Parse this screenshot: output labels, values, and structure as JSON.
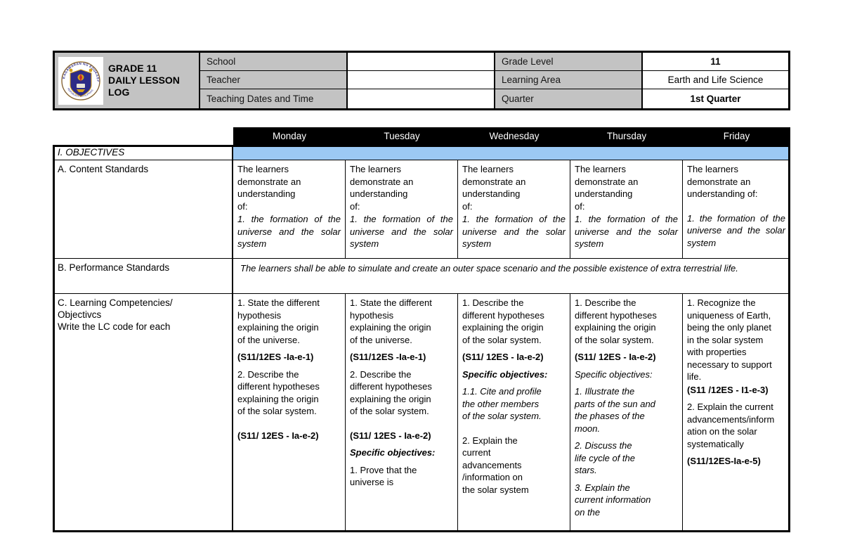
{
  "colors": {
    "header_gray": "#c3c3c3",
    "day_bar_black": "#000000",
    "objectives_band_blue": "#9cc9f4",
    "border_black": "#000000",
    "seal_navy": "#2d2b86",
    "seal_gold": "#d4a017",
    "seal_red": "#c0272d"
  },
  "header": {
    "logo_icon": "deped-seal-icon",
    "logo_title": "GRADE 11\nDAILY LESSON\nLOG",
    "fields_left": [
      {
        "label": "School",
        "value": ""
      },
      {
        "label": "Teacher",
        "value": ""
      },
      {
        "label": "Teaching Dates and Time",
        "value": ""
      }
    ],
    "fields_right": [
      {
        "label": "Grade Level",
        "value": "11"
      },
      {
        "label": "Learning Area",
        "value": "Earth and Life Science"
      },
      {
        "label": "Quarter",
        "value": "1st Quarter"
      }
    ]
  },
  "schedule": {
    "day_headers": [
      "Monday",
      "Tuesday",
      "Wednesday",
      "Thursday",
      "Friday"
    ],
    "objectives_section_label": "I. OBJECTIVES",
    "content_standards": {
      "label": "A. Content Standards",
      "cells": [
        [
          {
            "text": "The learners\ndemonstrate an\nunderstanding\nof:",
            "style": "m0"
          },
          {
            "text": "1. the formation of the universe and the solar system",
            "style": "italic justify"
          }
        ],
        [
          {
            "text": "The learners\ndemonstrate an\nunderstanding\nof:",
            "style": "m0"
          },
          {
            "text": "1. the formation of the universe and the solar system",
            "style": "italic justify"
          }
        ],
        [
          {
            "text": "The learners\ndemonstrate an\nunderstanding\nof:",
            "style": "m0"
          },
          {
            "text": "1. the formation of the universe and the solar system",
            "style": "italic justify"
          }
        ],
        [
          {
            "text": "The learners\ndemonstrate an\nunderstanding\nof:",
            "style": "m0"
          },
          {
            "text": "1. the formation of the universe and the solar system",
            "style": "italic justify"
          }
        ],
        [
          {
            "text": "The learners\ndemonstrate an\nunderstanding of:",
            "style": ""
          },
          {
            "text": "",
            "style": "gap"
          },
          {
            "text": "1. the formation of the universe and the solar system",
            "style": "italic justify"
          }
        ]
      ]
    },
    "performance_standards": {
      "label": "B. Performance Standards",
      "cell": [
        {
          "text": "The learners shall be able to simulate and create an outer space scenario and the possible existence of extra terrestrial life.",
          "style": "italic justify"
        }
      ]
    },
    "learning_competencies": {
      "label": "C. Learning Competencies/\nObjectivcs\nWrite the LC code for each",
      "cells": [
        [
          {
            "text": "1. State the different\nhypothesis\nexplaining the origin\nof the universe.",
            "style": ""
          },
          {
            "text": "(S11/12ES -Ia-e-1)",
            "style": "bold"
          },
          {
            "text": "2. Describe the\ndifferent hypotheses\nexplaining the origin\nof the solar system.",
            "style": ""
          },
          {
            "text": "",
            "style": "gap"
          },
          {
            "text": "(S11/ 12ES - Ia-e-2)",
            "style": "bold"
          }
        ],
        [
          {
            "text": "1. State the different\nhypothesis\nexplaining the origin\nof the universe.",
            "style": ""
          },
          {
            "text": "(S11/12ES -Ia-e-1)",
            "style": "bold"
          },
          {
            "text": "2. Describe the\ndifferent hypotheses\nexplaining the origin\nof the solar system.",
            "style": ""
          },
          {
            "text": "",
            "style": "gap"
          },
          {
            "text": "(S11/ 12ES - Ia-e-2)",
            "style": "bold"
          },
          {
            "text": "Specific objectives:",
            "style": "bolditalic"
          },
          {
            "text": "1. Prove that the\nuniverse is",
            "style": "m0"
          }
        ],
        [
          {
            "text": "1. Describe the\ndifferent hypotheses\nexplaining the origin\nof the solar system.",
            "style": ""
          },
          {
            "text": "(S11/ 12ES - Ia-e-2)",
            "style": "bold"
          },
          {
            "text": "Specific objectives:",
            "style": "bolditalic"
          },
          {
            "text": "1.1. Cite and profile\nthe other members\nof the solar system.",
            "style": "italic"
          },
          {
            "text": "",
            "style": "gap"
          },
          {
            "text": "2. Explain the\ncurrent\nadvancements\n/information on\nthe solar system",
            "style": ""
          }
        ],
        [
          {
            "text": "1. Describe the\ndifferent hypotheses\nexplaining the origin\nof the solar system.",
            "style": ""
          },
          {
            "text": "(S11/ 12ES - Ia-e-2)",
            "style": "bold"
          },
          {
            "text": "Specific objectives:",
            "style": "italic"
          },
          {
            "text": "1. Illustrate the\nparts of the sun and\nthe phases of the\nmoon.",
            "style": "italic"
          },
          {
            "text": "2. Discuss the\nlife cycle of the\nstars.",
            "style": "italic"
          },
          {
            "text": "3. Explain the\ncurrent information\non the",
            "style": "italic"
          }
        ],
        [
          {
            "text": "1. Recognize the\nuniqueness of Earth,\nbeing the only planet\nin the solar system\nwith properties\nnecessary to support\nlife.",
            "style": "m0"
          },
          {
            "text": "(S11 /12ES - I1-e-3)",
            "style": "bold"
          },
          {
            "text": "2. Explain the current\nadvancements/inform\nation on the solar\nsystematically",
            "style": ""
          },
          {
            "text": "(S11/12ES-Ia-e-5)",
            "style": "bold"
          }
        ]
      ]
    }
  }
}
